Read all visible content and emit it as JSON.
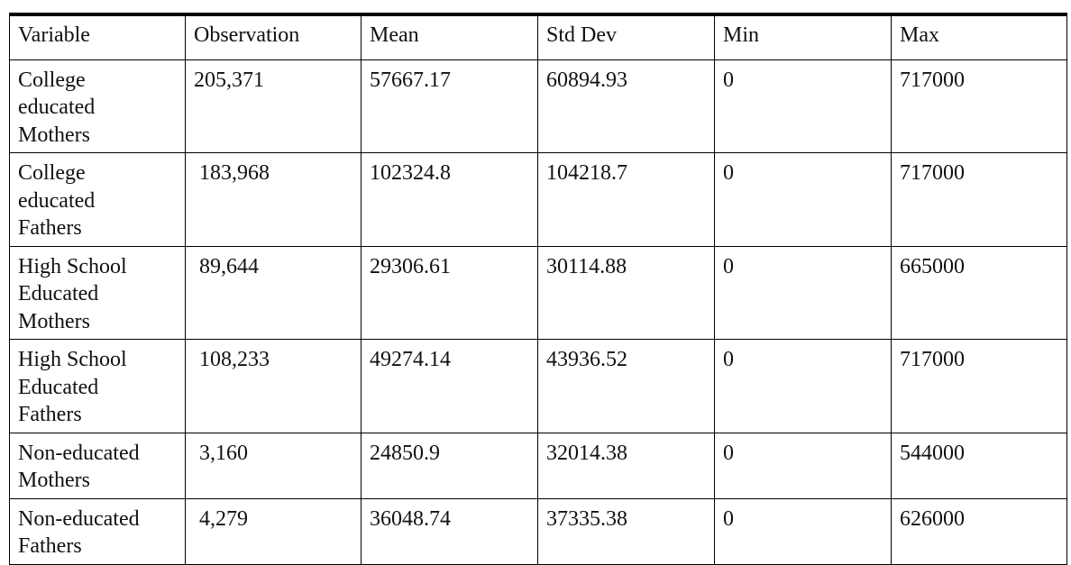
{
  "table": {
    "header": [
      "Variable",
      "Observation",
      "Mean",
      "Std Dev",
      "Min",
      "Max"
    ],
    "rows": [
      [
        [
          "College",
          "educated",
          "Mothers"
        ],
        "205,371",
        "57667.17",
        "60894.93",
        "0",
        "717000"
      ],
      [
        [
          "College",
          "educated",
          "Fathers"
        ],
        "183,968",
        "102324.8",
        "104218.7",
        "0",
        "717000"
      ],
      [
        [
          "High School",
          "Educated",
          "Mothers"
        ],
        "89,644",
        "29306.61",
        "30114.88",
        "0",
        "665000"
      ],
      [
        [
          "High School",
          "Educated",
          "Fathers"
        ],
        "108,233",
        "49274.14",
        "43936.52",
        "0",
        "717000"
      ],
      [
        [
          "Non-educated",
          "Mothers"
        ],
        "3,160",
        "24850.9",
        "32014.38",
        "0",
        "544000"
      ],
      [
        [
          "Non-educated",
          "Fathers"
        ],
        "4,279",
        "36048.74",
        "37335.38",
        "0",
        "626000"
      ]
    ]
  }
}
